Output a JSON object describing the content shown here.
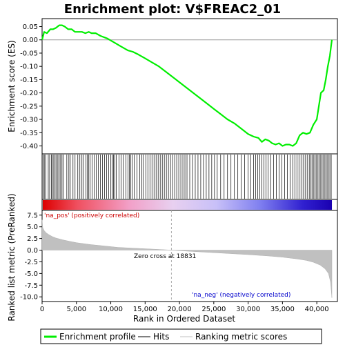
{
  "chart_data": {
    "type": "line",
    "title": "Enrichment plot: V$FREAC2_01",
    "xlabel": "Rank in Ordered Dataset",
    "x_ticks": [
      0,
      5000,
      10000,
      15000,
      20000,
      25000,
      30000,
      35000,
      40000
    ],
    "x_tick_labels": [
      "0",
      "5,000",
      "10,000",
      "15,000",
      "20,000",
      "25,000",
      "30,000",
      "35,000",
      "40,000"
    ],
    "xlim": [
      0,
      43000
    ],
    "enrichment_panel": {
      "ylabel": "Enrichment score (ES)",
      "ylim": [
        -0.43,
        0.08
      ],
      "y_ticks": [
        0.05,
        0.0,
        -0.05,
        -0.1,
        -0.15,
        -0.2,
        -0.25,
        -0.3,
        -0.35,
        -0.4
      ],
      "y_tick_labels": [
        "0.05",
        "0.00",
        "-0.05",
        "-0.10",
        "-0.15",
        "-0.20",
        "-0.25",
        "-0.30",
        "-0.35",
        "-0.40"
      ],
      "series": [
        {
          "name": "Enrichment profile",
          "color": "#00ee00",
          "x": [
            0,
            300,
            700,
            1200,
            1600,
            2000,
            2500,
            2900,
            3300,
            3800,
            4300,
            4800,
            5300,
            5800,
            6300,
            6800,
            7200,
            7800,
            8500,
            9500,
            10500,
            11500,
            12500,
            13200,
            14000,
            15000,
            16000,
            17000,
            18000,
            19000,
            20000,
            21000,
            22000,
            23000,
            24000,
            25000,
            26000,
            27000,
            28000,
            29000,
            30000,
            30800,
            31500,
            32000,
            32500,
            33000,
            33500,
            34000,
            34500,
            35000,
            35500,
            36000,
            36500,
            37000,
            37500,
            38000,
            38500,
            39000,
            39500,
            40000,
            40300,
            40600,
            41000,
            41300,
            41600,
            41900,
            42100,
            42200
          ],
          "values": [
            0.0,
            0.03,
            0.025,
            0.04,
            0.04,
            0.045,
            0.055,
            0.055,
            0.05,
            0.04,
            0.04,
            0.03,
            0.03,
            0.03,
            0.025,
            0.03,
            0.025,
            0.025,
            0.015,
            0.005,
            -0.01,
            -0.025,
            -0.04,
            -0.045,
            -0.055,
            -0.07,
            -0.085,
            -0.1,
            -0.12,
            -0.14,
            -0.16,
            -0.18,
            -0.2,
            -0.22,
            -0.24,
            -0.26,
            -0.28,
            -0.3,
            -0.315,
            -0.335,
            -0.355,
            -0.365,
            -0.37,
            -0.385,
            -0.375,
            -0.38,
            -0.39,
            -0.395,
            -0.39,
            -0.4,
            -0.395,
            -0.395,
            -0.4,
            -0.39,
            -0.36,
            -0.35,
            -0.355,
            -0.35,
            -0.32,
            -0.3,
            -0.25,
            -0.2,
            -0.19,
            -0.15,
            -0.1,
            -0.06,
            -0.02,
            0.0
          ]
        }
      ]
    },
    "hits_panel": {
      "description_label": "Hits",
      "hit_positions": [
        150,
        320,
        520,
        900,
        1100,
        1350,
        1500,
        1700,
        1900,
        2100,
        2300,
        2500,
        2700,
        2900,
        3100,
        3600,
        3900,
        4100,
        4500,
        4800,
        5200,
        5500,
        5800,
        6000,
        6400,
        6600,
        6800,
        7000,
        7300,
        7600,
        7900,
        8200,
        8500,
        8800,
        9100,
        9400,
        9700,
        10000,
        10200,
        10400,
        10600,
        10800,
        11200,
        11500,
        11800,
        12200,
        12500,
        12700,
        12900,
        13100,
        13400,
        13800,
        14200,
        14500,
        14700,
        15100,
        15400,
        15700,
        16000,
        16300,
        16600,
        16900,
        17200,
        17500,
        17800,
        18100,
        18400,
        18700,
        19000,
        19300,
        19600,
        19900,
        20200,
        20500,
        20800,
        21100,
        21500,
        21900,
        22300,
        22700,
        23100,
        23500,
        23900,
        24300,
        24700,
        25100,
        25500,
        26000,
        26500,
        27000,
        27500,
        28000,
        28500,
        29000,
        29500,
        30000,
        30400,
        30800,
        31100,
        31400,
        31700,
        32000,
        32300,
        32600,
        32900,
        33300,
        33700,
        34100,
        34500,
        34900,
        35300,
        35700,
        36100,
        36500,
        36800,
        37100,
        37400,
        37700,
        38000,
        38300,
        38600,
        38900,
        39100,
        39300,
        39500,
        39700,
        39900,
        40100,
        40300,
        40500,
        40700,
        40900,
        41100,
        41300,
        41500,
        41700,
        41900,
        42100
      ]
    },
    "ranked_metric_panel": {
      "ylabel": "Ranked list metric (PreRanked)",
      "ylim": [
        -11,
        8.5
      ],
      "y_ticks": [
        7.5,
        5.0,
        2.5,
        0.0,
        -2.5,
        -5.0,
        -7.5,
        -10.0
      ],
      "y_tick_labels": [
        "7.5",
        "5.0",
        "2.5",
        "0.0",
        "-2.5",
        "-5.0",
        "-7.5",
        "-10.0"
      ],
      "x": [
        0,
        100,
        300,
        600,
        1000,
        1500,
        2000,
        3000,
        4000,
        5000,
        7000,
        9000,
        11000,
        13000,
        15000,
        17000,
        18831,
        21000,
        24000,
        27000,
        30000,
        33000,
        35000,
        37000,
        38500,
        39500,
        40500,
        41200,
        41700,
        42000,
        42200
      ],
      "values": [
        6.5,
        4.8,
        4.2,
        3.7,
        3.3,
        2.9,
        2.6,
        2.2,
        1.9,
        1.6,
        1.2,
        0.9,
        0.6,
        0.45,
        0.3,
        0.15,
        0.0,
        -0.2,
        -0.45,
        -0.7,
        -0.95,
        -1.25,
        -1.5,
        -1.85,
        -2.2,
        -2.6,
        -3.2,
        -4.0,
        -5.0,
        -6.8,
        -10.2
      ],
      "zero_cross_rank": 18831,
      "zero_cross_label": "Zero cross at 18831",
      "pos_label": "'na_pos' (positively correlated)",
      "neg_label": "'na_neg' (negatively correlated)"
    },
    "legend": {
      "placement": "bottom",
      "entries": [
        {
          "label": "Enrichment profile",
          "color": "#00ee00"
        },
        {
          "label": "Hits",
          "color": "#000000"
        },
        {
          "label": "Ranking metric scores",
          "color": "#c0c0c0"
        }
      ]
    },
    "grid": false
  }
}
